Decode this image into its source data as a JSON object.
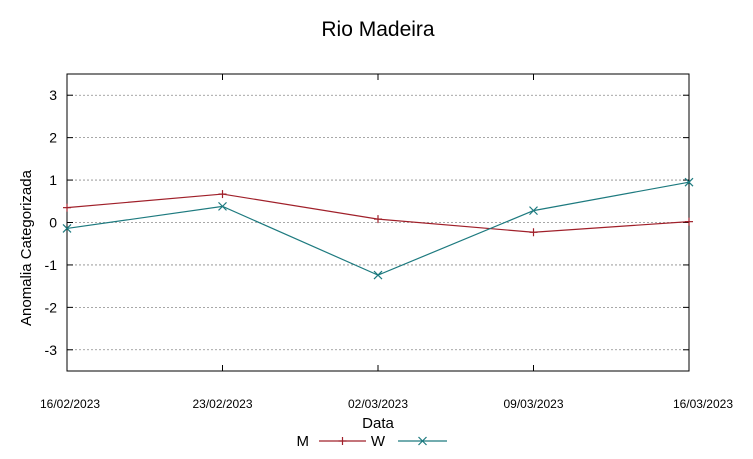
{
  "chart_data": {
    "type": "line",
    "title": "Rio Madeira",
    "xlabel": "Data",
    "ylabel": "Anomalia Categorizada",
    "categories": [
      "16/02/2023",
      "23/02/2023",
      "02/03/2023",
      "09/03/2023",
      "16/03/2023"
    ],
    "yticks": [
      "3",
      "2",
      "1",
      "0",
      "-1",
      "-2",
      "-3"
    ],
    "ylim": [
      -3.5,
      3.5
    ],
    "grid": true,
    "legend": "bottom",
    "series": [
      {
        "name": "M",
        "color": "#a0202a",
        "marker": "plus",
        "values": [
          0.35,
          0.67,
          0.08,
          -0.23,
          0.02
        ]
      },
      {
        "name": "W",
        "color": "#1d7a7f",
        "marker": "cross",
        "values": [
          -0.14,
          0.38,
          -1.24,
          0.28,
          0.95
        ]
      }
    ]
  }
}
